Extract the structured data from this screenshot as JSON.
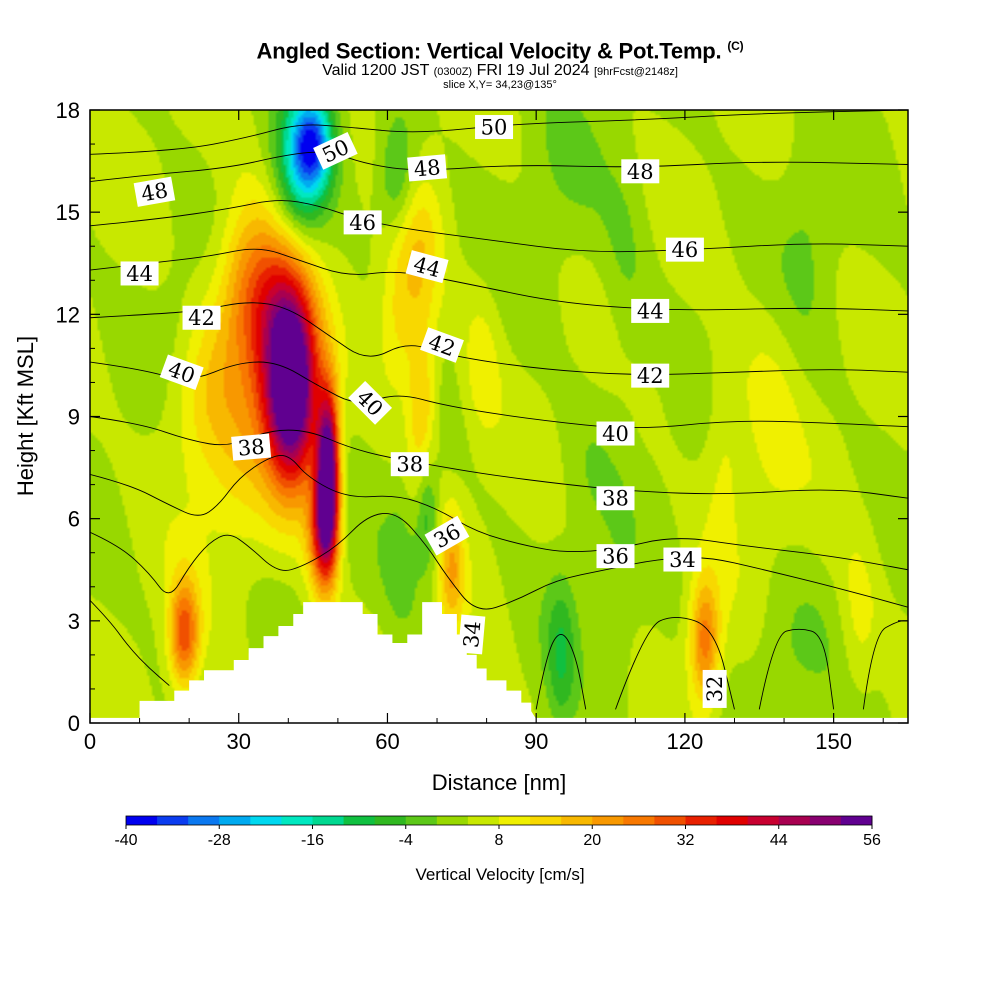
{
  "title": {
    "main": "Angled Section: Vertical Velocity & Pot.Temp.",
    "copyright": "(C)",
    "valid_prefix": "Valid 1200 JST",
    "valid_utc": "(0300Z)",
    "valid_date": "FRI 19 Jul 2024",
    "forecast": "[9hrFcst@2148z]",
    "slice": "slice X,Y= 34,23@135°"
  },
  "chart_data": {
    "type": "heatmap",
    "xlabel": "Distance [nm]",
    "ylabel": "Height [Kft MSL]",
    "xlim": [
      0,
      165
    ],
    "ylim": [
      0,
      18
    ],
    "x_ticks": [
      0,
      30,
      60,
      90,
      120,
      150
    ],
    "y_ticks": [
      0,
      3,
      6,
      9,
      12,
      15,
      18
    ],
    "colorbar": {
      "title": "Vertical Velocity [cm/s]",
      "range": [
        -40,
        56
      ],
      "step": 4,
      "tick_labels": [
        "-40",
        "-28",
        "-16",
        "-4",
        "8",
        "20",
        "32",
        "44",
        "56"
      ],
      "colors": [
        "#0000f0",
        "#0a3cf0",
        "#0a78f0",
        "#00aaf0",
        "#00d8f0",
        "#00e8c0",
        "#00d890",
        "#10c040",
        "#30b820",
        "#5cc818",
        "#98d800",
        "#c8e800",
        "#f0f000",
        "#f8d800",
        "#f8b800",
        "#f89800",
        "#f87800",
        "#f05000",
        "#e82000",
        "#e00000",
        "#c80030",
        "#a80050",
        "#880070",
        "#600090"
      ]
    },
    "terrain": [
      {
        "x": 10,
        "y": 0.65
      },
      {
        "x": 17,
        "y": 0.95
      },
      {
        "x": 20,
        "y": 1.25
      },
      {
        "x": 23,
        "y": 1.55
      },
      {
        "x": 29,
        "y": 1.85
      },
      {
        "x": 32,
        "y": 2.2
      },
      {
        "x": 35,
        "y": 2.55
      },
      {
        "x": 38,
        "y": 2.85
      },
      {
        "x": 41,
        "y": 3.2
      },
      {
        "x": 43,
        "y": 3.55
      },
      {
        "x": 52,
        "y": 3.55
      },
      {
        "x": 55,
        "y": 3.2
      },
      {
        "x": 58,
        "y": 2.6
      },
      {
        "x": 61,
        "y": 2.35
      },
      {
        "x": 64,
        "y": 2.6
      },
      {
        "x": 67,
        "y": 3.55
      },
      {
        "x": 71,
        "y": 3.2
      },
      {
        "x": 74,
        "y": 2.6
      },
      {
        "x": 76,
        "y": 2.0
      },
      {
        "x": 78,
        "y": 1.6
      },
      {
        "x": 80,
        "y": 1.25
      },
      {
        "x": 84,
        "y": 0.95
      },
      {
        "x": 87,
        "y": 0.6
      },
      {
        "x": 89,
        "y": 0.35
      }
    ],
    "velocity_cells": [
      {
        "x": 41,
        "y": 9.5,
        "sx": 5,
        "sy": 2.6,
        "v": 50
      },
      {
        "x": 48,
        "y": 7.4,
        "sx": 2.2,
        "sy": 2.3,
        "v": 56
      },
      {
        "x": 39,
        "y": 11.5,
        "sx": 6,
        "sy": 2.8,
        "v": 30
      },
      {
        "x": 32,
        "y": 12.8,
        "sx": 6,
        "sy": 2.5,
        "v": 18
      },
      {
        "x": 47,
        "y": 5.6,
        "sx": 3,
        "sy": 1.8,
        "v": 30
      },
      {
        "x": 31,
        "y": 8.5,
        "sx": 9,
        "sy": 4,
        "v": 8
      },
      {
        "x": 19,
        "y": 2.6,
        "sx": 3,
        "sy": 1.6,
        "v": 26
      },
      {
        "x": 22,
        "y": 9.6,
        "sx": 8,
        "sy": 2.8,
        "v": 8
      },
      {
        "x": 67,
        "y": 9.2,
        "sx": 3,
        "sy": 2.5,
        "v": 14
      },
      {
        "x": 66,
        "y": 13.8,
        "sx": 5,
        "sy": 2.4,
        "v": 10
      },
      {
        "x": 62,
        "y": 11.5,
        "sx": 4,
        "sy": 2.2,
        "v": 8
      },
      {
        "x": 73,
        "y": 4.5,
        "sx": 2.5,
        "sy": 1.8,
        "v": 14
      },
      {
        "x": 79,
        "y": 10.5,
        "sx": 4,
        "sy": 2.5,
        "v": 6
      },
      {
        "x": 45,
        "y": 17.0,
        "sx": 4,
        "sy": 1.4,
        "v": -30
      },
      {
        "x": 42,
        "y": 16.2,
        "sx": 5,
        "sy": 2.2,
        "v": -18
      },
      {
        "x": 62,
        "y": 16.0,
        "sx": 4,
        "sy": 1.8,
        "v": -12
      },
      {
        "x": 68,
        "y": 6.2,
        "sx": 2.2,
        "sy": 1.8,
        "v": -12
      },
      {
        "x": 63,
        "y": 4.8,
        "sx": 4,
        "sy": 2.2,
        "v": -6
      },
      {
        "x": 18,
        "y": 11.8,
        "sx": 5,
        "sy": 2.2,
        "v": -4
      },
      {
        "x": 95,
        "y": 2.0,
        "sx": 3,
        "sy": 2.2,
        "v": -10
      },
      {
        "x": 140,
        "y": 2.0,
        "sx": 8,
        "sy": 2.2,
        "v": -4
      },
      {
        "x": 106,
        "y": 2.6,
        "sx": 4,
        "sy": 2.5,
        "v": -4
      },
      {
        "x": 124,
        "y": 2.4,
        "sx": 3,
        "sy": 1.8,
        "v": 22
      },
      {
        "x": 108,
        "y": 13.2,
        "sx": 5,
        "sy": 4,
        "v": -4
      },
      {
        "x": 95,
        "y": 16.0,
        "sx": 8,
        "sy": 3,
        "v": -3
      },
      {
        "x": 137,
        "y": 9.0,
        "sx": 6,
        "sy": 3.5,
        "v": 5
      },
      {
        "x": 128,
        "y": 8.0,
        "sx": 4,
        "sy": 3,
        "v": 6
      },
      {
        "x": 155,
        "y": 3.0,
        "sx": 4,
        "sy": 2.4,
        "v": 6
      },
      {
        "x": 100,
        "y": 7.2,
        "sx": 6,
        "sy": 2.5,
        "v": -3
      },
      {
        "x": 145,
        "y": 14.5,
        "sx": 6,
        "sy": 3,
        "v": -4
      }
    ],
    "isentropes": [
      {
        "value": 50,
        "pts": [
          [
            0,
            16.7
          ],
          [
            18,
            16.8
          ],
          [
            32,
            17.2
          ],
          [
            42,
            17.6
          ],
          [
            52,
            17.5
          ],
          [
            66,
            17.3
          ],
          [
            86,
            17.6
          ],
          [
            110,
            17.7
          ],
          [
            135,
            17.9
          ],
          [
            165,
            18.0
          ]
        ]
      },
      {
        "value": 48,
        "pts": [
          [
            0,
            15.9
          ],
          [
            12,
            16.1
          ],
          [
            28,
            16.3
          ],
          [
            40,
            16.7
          ],
          [
            48,
            16.8
          ],
          [
            56,
            16.4
          ],
          [
            66,
            16.2
          ],
          [
            86,
            16.4
          ],
          [
            110,
            16.3
          ],
          [
            135,
            16.5
          ],
          [
            165,
            16.4
          ]
        ]
      },
      {
        "value": 46,
        "pts": [
          [
            0,
            14.6
          ],
          [
            14,
            14.8
          ],
          [
            28,
            15.1
          ],
          [
            38,
            15.4
          ],
          [
            46,
            15.2
          ],
          [
            54,
            14.8
          ],
          [
            64,
            14.5
          ],
          [
            80,
            14.2
          ],
          [
            100,
            13.8
          ],
          [
            122,
            13.9
          ],
          [
            145,
            14.1
          ],
          [
            165,
            14.0
          ]
        ]
      },
      {
        "value": 44,
        "pts": [
          [
            0,
            13.3
          ],
          [
            12,
            13.5
          ],
          [
            24,
            13.7
          ],
          [
            34,
            14.0
          ],
          [
            42,
            13.6
          ],
          [
            52,
            13.1
          ],
          [
            62,
            13.3
          ],
          [
            76,
            12.9
          ],
          [
            96,
            12.3
          ],
          [
            120,
            12.1
          ],
          [
            145,
            12.2
          ],
          [
            165,
            12.1
          ]
        ]
      },
      {
        "value": 42,
        "pts": [
          [
            0,
            11.9
          ],
          [
            12,
            12.0
          ],
          [
            22,
            12.1
          ],
          [
            32,
            12.4
          ],
          [
            40,
            12.2
          ],
          [
            48,
            11.4
          ],
          [
            56,
            10.6
          ],
          [
            64,
            11.2
          ],
          [
            72,
            10.8
          ],
          [
            90,
            10.4
          ],
          [
            110,
            10.2
          ],
          [
            130,
            10.3
          ],
          [
            150,
            10.4
          ],
          [
            165,
            10.3
          ]
        ]
      },
      {
        "value": 40,
        "pts": [
          [
            0,
            10.6
          ],
          [
            10,
            10.4
          ],
          [
            20,
            10.0
          ],
          [
            30,
            10.6
          ],
          [
            38,
            10.6
          ],
          [
            46,
            9.9
          ],
          [
            54,
            9.3
          ],
          [
            62,
            9.7
          ],
          [
            72,
            9.3
          ],
          [
            90,
            8.9
          ],
          [
            110,
            8.6
          ],
          [
            130,
            8.9
          ],
          [
            150,
            8.8
          ],
          [
            165,
            8.7
          ]
        ]
      },
      {
        "value": 38,
        "pts": [
          [
            0,
            9.0
          ],
          [
            10,
            8.8
          ],
          [
            20,
            8.3
          ],
          [
            28,
            8.1
          ],
          [
            36,
            8.6
          ],
          [
            44,
            8.6
          ],
          [
            52,
            8.1
          ],
          [
            60,
            7.8
          ],
          [
            68,
            7.6
          ],
          [
            80,
            7.3
          ],
          [
            96,
            7.0
          ],
          [
            110,
            6.8
          ],
          [
            128,
            6.7
          ],
          [
            150,
            6.9
          ],
          [
            165,
            6.6
          ]
        ]
      },
      {
        "value": 36,
        "pts": [
          [
            0,
            7.3
          ],
          [
            8,
            7.0
          ],
          [
            16,
            6.4
          ],
          [
            22,
            6.0
          ],
          [
            26,
            6.4
          ],
          [
            30,
            7.2
          ],
          [
            36,
            7.8
          ],
          [
            40,
            7.9
          ],
          [
            44,
            7.2
          ],
          [
            52,
            6.6
          ],
          [
            62,
            6.7
          ],
          [
            70,
            6.3
          ],
          [
            78,
            5.6
          ],
          [
            88,
            5.2
          ],
          [
            96,
            5.0
          ],
          [
            106,
            5.1
          ],
          [
            118,
            5.5
          ],
          [
            132,
            5.2
          ],
          [
            150,
            4.9
          ],
          [
            165,
            4.5
          ]
        ]
      },
      {
        "value": 34,
        "pts": [
          [
            0,
            5.6
          ],
          [
            6,
            5.2
          ],
          [
            12,
            4.4
          ],
          [
            16,
            3.6
          ],
          [
            20,
            4.6
          ],
          [
            24,
            5.3
          ],
          [
            28,
            5.6
          ],
          [
            32,
            5.2
          ],
          [
            38,
            4.4
          ],
          [
            43,
            4.6
          ],
          [
            50,
            5.2
          ],
          [
            56,
            6.1
          ],
          [
            62,
            6.2
          ],
          [
            68,
            5.2
          ],
          [
            72,
            4.3
          ],
          [
            78,
            3.2
          ],
          [
            86,
            3.6
          ],
          [
            94,
            4.2
          ],
          [
            104,
            4.5
          ],
          [
            114,
            4.8
          ],
          [
            124,
            4.9
          ],
          [
            136,
            4.5
          ],
          [
            150,
            4.0
          ],
          [
            165,
            3.4
          ]
        ]
      },
      {
        "value": 32,
        "pts": [
          [
            0,
            3.6
          ],
          [
            4,
            3.0
          ],
          [
            8,
            2.2
          ],
          [
            12,
            1.6
          ],
          [
            16,
            1.1
          ]
        ]
      },
      {
        "value": 32,
        "pts": [
          [
            90,
            0.4
          ],
          [
            92,
            2.0
          ],
          [
            95,
            2.8
          ],
          [
            98,
            2.0
          ],
          [
            100,
            0.4
          ]
        ]
      },
      {
        "value": 32,
        "pts": [
          [
            106,
            0.4
          ],
          [
            112,
            2.8
          ],
          [
            118,
            3.2
          ],
          [
            126,
            2.8
          ],
          [
            130,
            0.4
          ]
        ]
      },
      {
        "value": 32,
        "pts": [
          [
            135,
            0.4
          ],
          [
            138,
            2.6
          ],
          [
            143,
            2.8
          ],
          [
            148,
            2.6
          ],
          [
            150,
            0.4
          ]
        ]
      },
      {
        "value": 32,
        "pts": [
          [
            156,
            0.4
          ],
          [
            158,
            2.6
          ],
          [
            163,
            3.0
          ],
          [
            165,
            3.0
          ]
        ]
      }
    ],
    "contour_labels": [
      {
        "text": "50",
        "x": 49.5,
        "y": 16.8,
        "angle": -25
      },
      {
        "text": "50",
        "x": 81.5,
        "y": 17.5,
        "angle": 0
      },
      {
        "text": "48",
        "x": 13,
        "y": 15.6,
        "angle": -10
      },
      {
        "text": "48",
        "x": 68,
        "y": 16.3,
        "angle": -5
      },
      {
        "text": "48",
        "x": 111,
        "y": 16.2,
        "angle": 0
      },
      {
        "text": "46",
        "x": 55,
        "y": 14.7,
        "angle": 0
      },
      {
        "text": "46",
        "x": 120,
        "y": 13.9,
        "angle": 0
      },
      {
        "text": "44",
        "x": 10,
        "y": 13.2,
        "angle": 0
      },
      {
        "text": "44",
        "x": 68,
        "y": 13.4,
        "angle": 15
      },
      {
        "text": "44",
        "x": 113,
        "y": 12.1,
        "angle": 0
      },
      {
        "text": "42",
        "x": 22.5,
        "y": 11.9,
        "angle": 0
      },
      {
        "text": "42",
        "x": 71,
        "y": 11.1,
        "angle": 20
      },
      {
        "text": "42",
        "x": 113,
        "y": 10.2,
        "angle": 0
      },
      {
        "text": "40",
        "x": 18.5,
        "y": 10.3,
        "angle": 20
      },
      {
        "text": "40",
        "x": 56.5,
        "y": 9.4,
        "angle": 45
      },
      {
        "text": "40",
        "x": 106,
        "y": 8.5,
        "angle": 0
      },
      {
        "text": "38",
        "x": 32.5,
        "y": 8.1,
        "angle": -5
      },
      {
        "text": "38",
        "x": 64.5,
        "y": 7.6,
        "angle": 0
      },
      {
        "text": "38",
        "x": 106,
        "y": 6.6,
        "angle": 0
      },
      {
        "text": "36",
        "x": 72,
        "y": 5.5,
        "angle": -30
      },
      {
        "text": "36",
        "x": 106,
        "y": 4.9,
        "angle": 0
      },
      {
        "text": "34",
        "x": 77,
        "y": 2.6,
        "angle": -85
      },
      {
        "text": "34",
        "x": 119.5,
        "y": 4.8,
        "angle": 0
      },
      {
        "text": "32",
        "x": 126,
        "y": 1.0,
        "angle": -90
      }
    ],
    "grid": false
  }
}
